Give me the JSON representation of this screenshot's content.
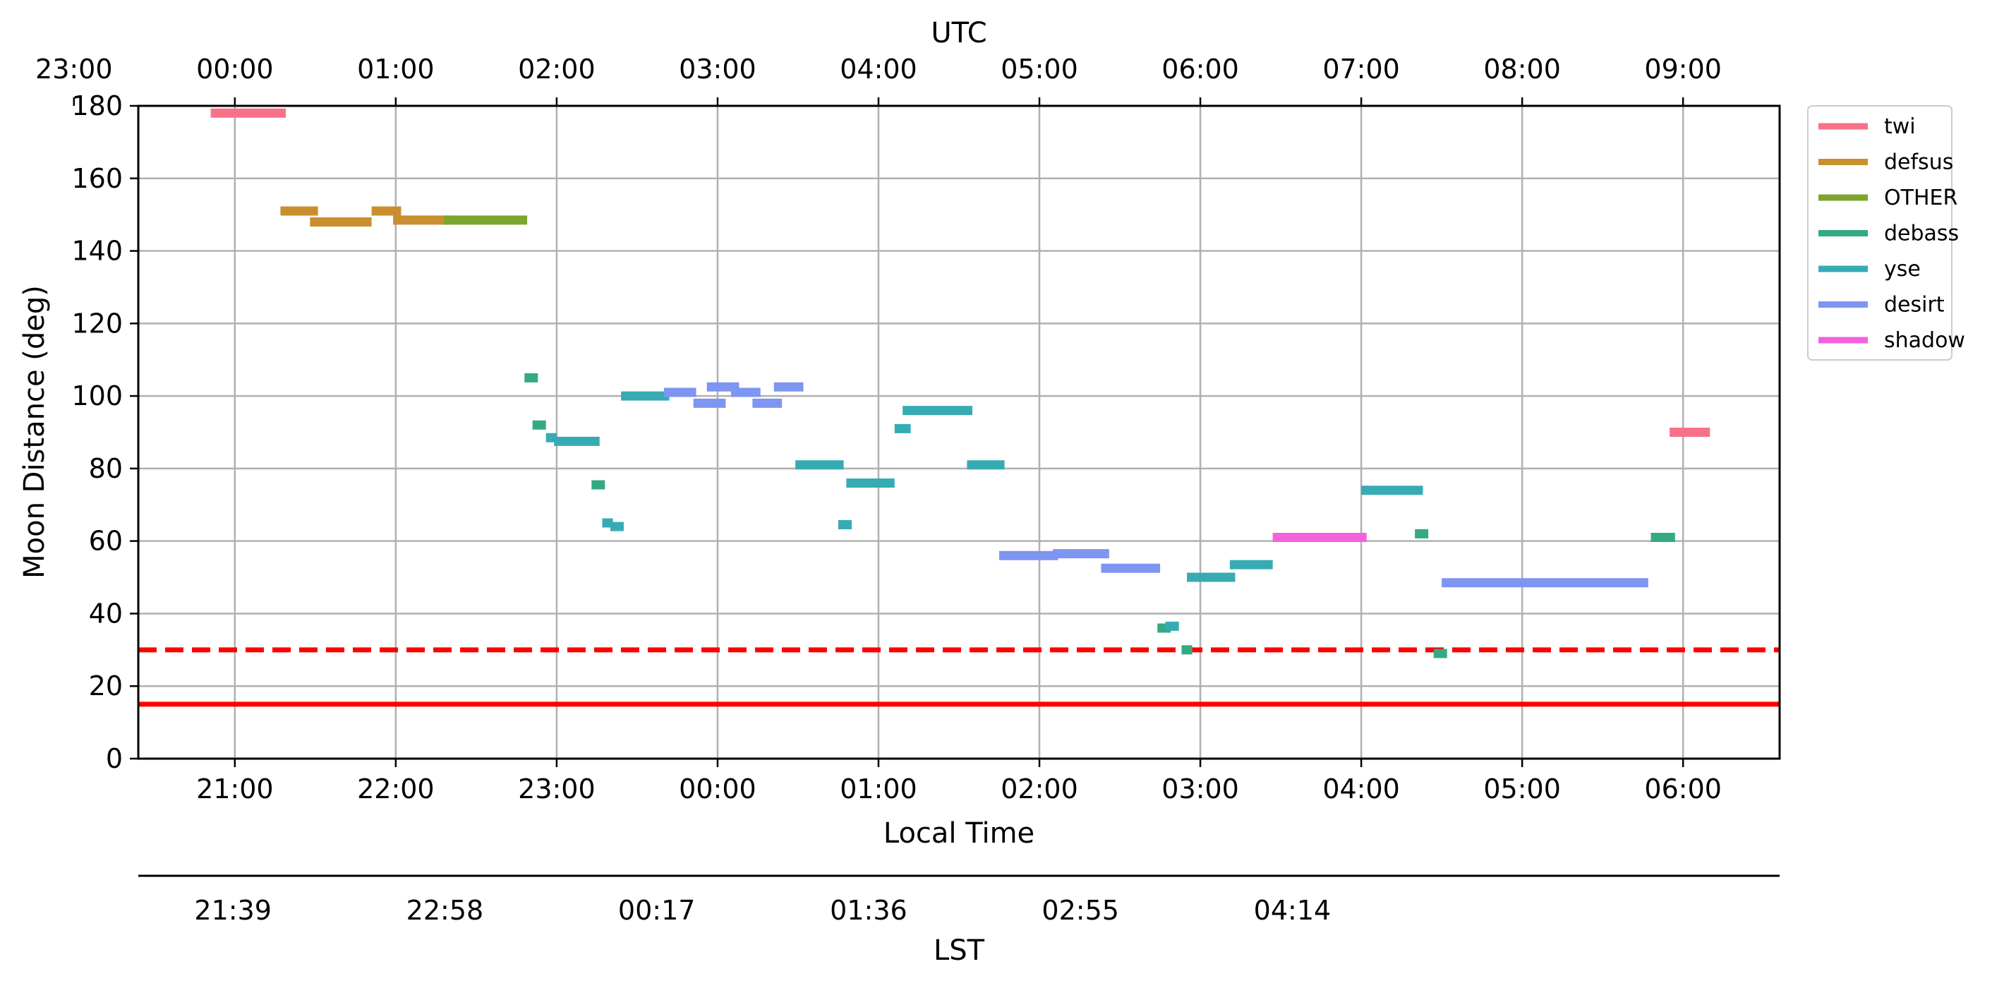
{
  "chart_data": {
    "type": "line",
    "ylabel": "Moon Distance (deg)",
    "ylim": [
      0,
      180
    ],
    "yticks": [
      0,
      20,
      40,
      60,
      80,
      100,
      120,
      140,
      160,
      180
    ],
    "xlabel": "Local Time",
    "xlim": [
      "20:24",
      "06:36"
    ],
    "xticks": [
      "21:00",
      "22:00",
      "23:00",
      "00:00",
      "01:00",
      "02:00",
      "03:00",
      "04:00",
      "05:00",
      "06:00"
    ],
    "top_axis": {
      "label": "UTC",
      "ticks": [
        "23:00",
        "00:00",
        "01:00",
        "02:00",
        "03:00",
        "04:00",
        "05:00",
        "06:00",
        "07:00",
        "08:00",
        "09:00"
      ]
    },
    "lst_axis": {
      "label": "LST",
      "ticks": [
        "21:39",
        "22:58",
        "00:17",
        "01:36",
        "02:55",
        "04:14"
      ]
    },
    "grid": true,
    "legend_placement": "outside upper right",
    "reference_lines": [
      {
        "y": 30,
        "style": "dashed",
        "color": "#ff0000"
      },
      {
        "y": 15,
        "style": "solid",
        "color": "#ff0000"
      }
    ],
    "series": [
      {
        "name": "twi",
        "color": "#f77189",
        "segments": [
          {
            "start": "20:51",
            "end": "21:19",
            "y": 178
          },
          {
            "start": "05:55",
            "end": "06:10",
            "y": 90
          }
        ]
      },
      {
        "name": "defsus",
        "color": "#c98f2e",
        "segments": [
          {
            "start": "21:17",
            "end": "21:31",
            "y": 151
          },
          {
            "start": "21:28",
            "end": "21:51",
            "y": 148
          },
          {
            "start": "21:51",
            "end": "22:02",
            "y": 151
          },
          {
            "start": "21:59",
            "end": "22:21",
            "y": 148.5
          }
        ]
      },
      {
        "name": "OTHER",
        "color": "#7ca630",
        "segments": [
          {
            "start": "22:18",
            "end": "22:49",
            "y": 148.5
          }
        ]
      },
      {
        "name": "debass",
        "color": "#33aa7f",
        "segments": [
          {
            "start": "22:48",
            "end": "22:53",
            "y": 105
          },
          {
            "start": "22:51",
            "end": "22:56",
            "y": 92
          },
          {
            "start": "23:13",
            "end": "23:18",
            "y": 75.5
          },
          {
            "start": "02:44",
            "end": "02:49",
            "y": 36
          },
          {
            "start": "02:53",
            "end": "02:57",
            "y": 30
          },
          {
            "start": "04:20",
            "end": "04:25",
            "y": 62
          },
          {
            "start": "04:27",
            "end": "04:32",
            "y": 29
          },
          {
            "start": "05:48",
            "end": "05:54",
            "y": 61
          },
          {
            "start": "05:52",
            "end": "05:57",
            "y": 61
          }
        ]
      },
      {
        "name": "yse",
        "color": "#37abb4",
        "segments": [
          {
            "start": "22:56",
            "end": "23:00",
            "y": 88.5
          },
          {
            "start": "22:59",
            "end": "23:16",
            "y": 87.5
          },
          {
            "start": "23:17",
            "end": "23:21",
            "y": 65
          },
          {
            "start": "23:20",
            "end": "23:25",
            "y": 64
          },
          {
            "start": "23:24",
            "end": "23:42",
            "y": 100
          },
          {
            "start": "00:29",
            "end": "00:47",
            "y": 81
          },
          {
            "start": "00:45",
            "end": "00:50",
            "y": 64.5
          },
          {
            "start": "00:48",
            "end": "01:06",
            "y": 76
          },
          {
            "start": "01:06",
            "end": "01:12",
            "y": 91
          },
          {
            "start": "01:09",
            "end": "01:35",
            "y": 96
          },
          {
            "start": "01:33",
            "end": "01:47",
            "y": 81
          },
          {
            "start": "02:47",
            "end": "02:52",
            "y": 36.5
          },
          {
            "start": "02:55",
            "end": "03:13",
            "y": 50
          },
          {
            "start": "03:11",
            "end": "03:27",
            "y": 53.5
          },
          {
            "start": "04:00",
            "end": "04:23",
            "y": 74
          }
        ]
      },
      {
        "name": "desirt",
        "color": "#7e95f2",
        "segments": [
          {
            "start": "23:40",
            "end": "23:52",
            "y": 101
          },
          {
            "start": "23:51",
            "end": "24:03",
            "y": 98
          },
          {
            "start": "23:56",
            "end": "24:08",
            "y": 102.5
          },
          {
            "start": "24:05",
            "end": "24:16",
            "y": 101
          },
          {
            "start": "24:13",
            "end": "24:24",
            "y": 98
          },
          {
            "start": "24:21",
            "end": "24:32",
            "y": 102.5
          },
          {
            "start": "01:45",
            "end": "02:07",
            "y": 56
          },
          {
            "start": "02:05",
            "end": "02:26",
            "y": 56.5
          },
          {
            "start": "02:23",
            "end": "02:45",
            "y": 52.5
          },
          {
            "start": "04:30",
            "end": "05:47",
            "y": 48.5
          }
        ]
      },
      {
        "name": "shadow",
        "color": "#f461dd",
        "segments": [
          {
            "start": "03:27",
            "end": "04:02",
            "y": 61
          }
        ]
      }
    ]
  }
}
